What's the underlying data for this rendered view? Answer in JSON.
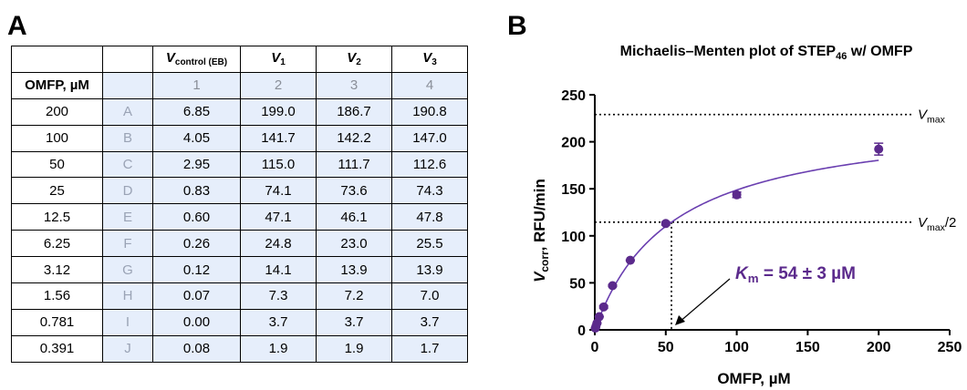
{
  "panel_a": {
    "letter": "A",
    "table": {
      "headers": {
        "vcontrol": {
          "main": "V",
          "sub": "control (EB)"
        },
        "v1": {
          "main": "V",
          "sub": "1"
        },
        "v2": {
          "main": "V",
          "sub": "2"
        },
        "v3": {
          "main": "V",
          "sub": "3"
        }
      },
      "row_label_header": "OMFP, µM",
      "column_indices": [
        "1",
        "2",
        "3",
        "4"
      ],
      "rows": [
        {
          "omfp": "200",
          "well": "A",
          "vc": "6.85",
          "v1": "199.0",
          "v2": "186.7",
          "v3": "190.8"
        },
        {
          "omfp": "100",
          "well": "B",
          "vc": "4.05",
          "v1": "141.7",
          "v2": "142.2",
          "v3": "147.0"
        },
        {
          "omfp": "50",
          "well": "C",
          "vc": "2.95",
          "v1": "115.0",
          "v2": "111.7",
          "v3": "112.6"
        },
        {
          "omfp": "25",
          "well": "D",
          "vc": "0.83",
          "v1": "74.1",
          "v2": "73.6",
          "v3": "74.3"
        },
        {
          "omfp": "12.5",
          "well": "E",
          "vc": "0.60",
          "v1": "47.1",
          "v2": "46.1",
          "v3": "47.8"
        },
        {
          "omfp": "6.25",
          "well": "F",
          "vc": "0.26",
          "v1": "24.8",
          "v2": "23.0",
          "v3": "25.5"
        },
        {
          "omfp": "3.12",
          "well": "G",
          "vc": "0.12",
          "v1": "14.1",
          "v2": "13.9",
          "v3": "13.9"
        },
        {
          "omfp": "1.56",
          "well": "H",
          "vc": "0.07",
          "v1": "7.3",
          "v2": "7.2",
          "v3": "7.0"
        },
        {
          "omfp": "0.781",
          "well": "I",
          "vc": "0.00",
          "v1": "3.7",
          "v2": "3.7",
          "v3": "3.7"
        },
        {
          "omfp": "0.391",
          "well": "J",
          "vc": "0.08",
          "v1": "1.9",
          "v2": "1.9",
          "v3": "1.7"
        }
      ]
    }
  },
  "panel_b": {
    "letter": "B",
    "title_main": "Michaelis–Menten plot of STEP",
    "title_sub": "46",
    "title_tail": " w/ OMFP"
  },
  "chart_data": {
    "type": "scatter",
    "title": "Michaelis–Menten plot of STEP46 w/ OMFP",
    "xlabel": "OMFP, µM",
    "ylabel": {
      "main": "V",
      "sub": "corr",
      "tail": ", RFU/min"
    },
    "xlim": [
      0,
      250
    ],
    "ylim": [
      0,
      250
    ],
    "xticks": [
      0,
      50,
      100,
      150,
      200,
      250
    ],
    "yticks": [
      0,
      50,
      100,
      150,
      200,
      250
    ],
    "grid": false,
    "point_color": "#5b2a8c",
    "curve_color": "#6a3fb0",
    "points": [
      {
        "x": 0.391,
        "y": 1.8,
        "err": 0.1
      },
      {
        "x": 0.781,
        "y": 3.7,
        "err": 0.0
      },
      {
        "x": 1.56,
        "y": 7.2,
        "err": 0.2
      },
      {
        "x": 3.12,
        "y": 14.0,
        "err": 0.1
      },
      {
        "x": 6.25,
        "y": 24.4,
        "err": 1.3
      },
      {
        "x": 12.5,
        "y": 47.0,
        "err": 0.9
      },
      {
        "x": 25,
        "y": 74.0,
        "err": 0.4
      },
      {
        "x": 50,
        "y": 113.1,
        "err": 1.7
      },
      {
        "x": 100,
        "y": 143.6,
        "err": 2.9
      },
      {
        "x": 200,
        "y": 192.2,
        "err": 6.3
      }
    ],
    "fit": {
      "vmax": 229,
      "km": 54
    },
    "annotations": {
      "vmax_label": {
        "main": "V",
        "sub": "max",
        "tail": ""
      },
      "vmax_half_label": {
        "main": "V",
        "sub": "max",
        "tail": "/2"
      },
      "km_label": {
        "main": "K",
        "sub": "m",
        "tail": " = 54 ± 3 µM"
      },
      "km_color": "#5b2a8c"
    }
  }
}
